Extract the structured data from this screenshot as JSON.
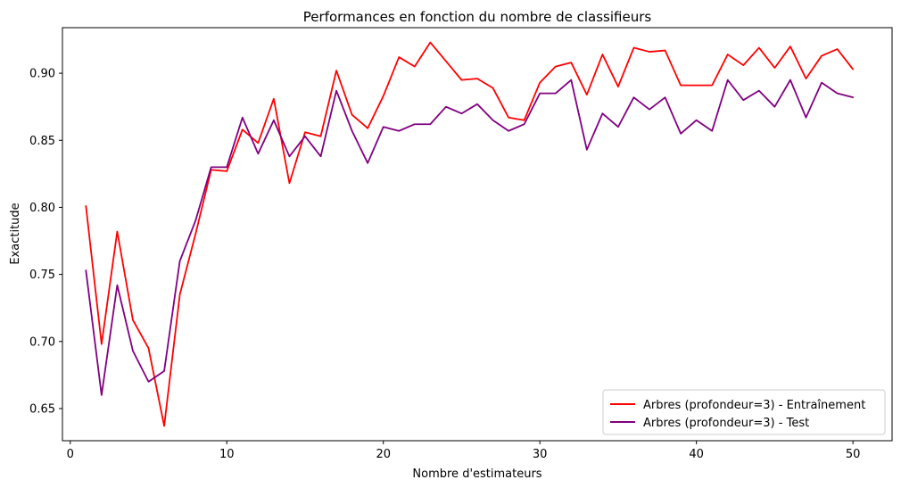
{
  "chart_data": {
    "type": "line",
    "title": "Performances en fonction du nombre de classifieurs",
    "xlabel": "Nombre d'estimateurs",
    "ylabel": "Exactitude",
    "xlim": [
      -0.5,
      52.5
    ],
    "ylim": [
      0.626,
      0.934
    ],
    "xticks": [
      0,
      10,
      20,
      30,
      40,
      50
    ],
    "xtick_labels": [
      "0",
      "10",
      "20",
      "30",
      "40",
      "50"
    ],
    "yticks": [
      0.65,
      0.7,
      0.75,
      0.8,
      0.85,
      0.9
    ],
    "ytick_labels": [
      "0.65",
      "0.70",
      "0.75",
      "0.80",
      "0.85",
      "0.90"
    ],
    "grid": false,
    "legend_position": "lower-right",
    "x": [
      1,
      2,
      3,
      4,
      5,
      6,
      7,
      8,
      9,
      10,
      11,
      12,
      13,
      14,
      15,
      16,
      17,
      18,
      19,
      20,
      21,
      22,
      23,
      24,
      25,
      26,
      27,
      28,
      29,
      30,
      31,
      32,
      33,
      34,
      35,
      36,
      37,
      38,
      39,
      40,
      41,
      42,
      43,
      44,
      45,
      46,
      47,
      48,
      49,
      50
    ],
    "series": [
      {
        "name": "Arbres (profondeur=3) - Entraînement",
        "color": "#ff0000",
        "values": [
          0.801,
          0.698,
          0.782,
          0.716,
          0.695,
          0.637,
          0.735,
          0.78,
          0.828,
          0.827,
          0.858,
          0.848,
          0.881,
          0.818,
          0.856,
          0.853,
          0.902,
          0.869,
          0.859,
          0.883,
          0.912,
          0.905,
          0.923,
          0.909,
          0.895,
          0.896,
          0.889,
          0.867,
          0.865,
          0.893,
          0.905,
          0.908,
          0.884,
          0.914,
          0.89,
          0.919,
          0.916,
          0.917,
          0.891,
          0.891,
          0.891,
          0.914,
          0.906,
          0.919,
          0.904,
          0.92,
          0.896,
          0.913,
          0.918,
          0.903
        ]
      },
      {
        "name": "Arbres (profondeur=3) - Test",
        "color": "#800080",
        "values": [
          0.753,
          0.66,
          0.742,
          0.693,
          0.67,
          0.678,
          0.76,
          0.79,
          0.83,
          0.83,
          0.867,
          0.84,
          0.865,
          0.838,
          0.853,
          0.838,
          0.887,
          0.857,
          0.833,
          0.86,
          0.857,
          0.862,
          0.862,
          0.875,
          0.87,
          0.877,
          0.865,
          0.857,
          0.862,
          0.885,
          0.885,
          0.895,
          0.843,
          0.87,
          0.86,
          0.882,
          0.873,
          0.882,
          0.855,
          0.865,
          0.857,
          0.895,
          0.88,
          0.887,
          0.875,
          0.895,
          0.867,
          0.893,
          0.885,
          0.882
        ]
      }
    ]
  }
}
